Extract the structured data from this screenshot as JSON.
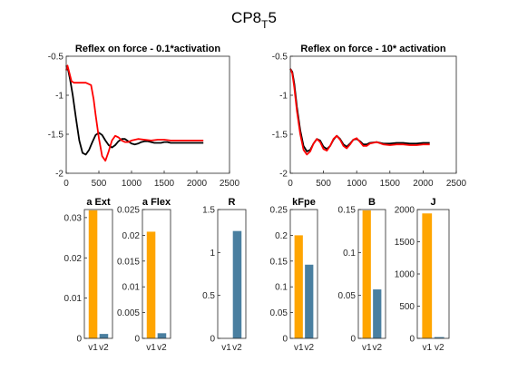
{
  "figure": {
    "title_main": "CP8",
    "title_sub": "T",
    "title_tail": "5"
  },
  "colors": {
    "black": "#000000",
    "red": "#ff0000",
    "orange": "#ffa500",
    "teal": "#4a7fa0",
    "axis": "#262626"
  },
  "chart_data": [
    {
      "type": "line",
      "title": "Reflex on force - 0.1*activation",
      "xlim": [
        0,
        2500
      ],
      "ylim": [
        -2,
        -0.5
      ],
      "xticks": [
        0,
        500,
        1000,
        1500,
        2000,
        2500
      ],
      "yticks": [
        -2,
        -1.5,
        -1,
        -0.5
      ],
      "ytick_labels": [
        "-2",
        "-1.5",
        "-1",
        "-0.5"
      ],
      "series": [
        {
          "color": "black",
          "x": [
            0,
            30,
            60,
            100,
            150,
            200,
            250,
            300,
            350,
            400,
            450,
            500,
            550,
            600,
            650,
            700,
            750,
            800,
            850,
            900,
            950,
            1000,
            1050,
            1100,
            1150,
            1200,
            1250,
            1300,
            1350,
            1400,
            1450,
            1500,
            1550,
            1600,
            1700,
            1800,
            1900,
            2000,
            2100
          ],
          "y": [
            -0.62,
            -0.68,
            -0.8,
            -1.0,
            -1.3,
            -1.58,
            -1.74,
            -1.76,
            -1.7,
            -1.6,
            -1.51,
            -1.48,
            -1.51,
            -1.58,
            -1.64,
            -1.67,
            -1.64,
            -1.59,
            -1.56,
            -1.56,
            -1.59,
            -1.62,
            -1.63,
            -1.62,
            -1.6,
            -1.59,
            -1.59,
            -1.6,
            -1.61,
            -1.61,
            -1.61,
            -1.6,
            -1.6,
            -1.61,
            -1.61,
            -1.61,
            -1.61,
            -1.61,
            -1.61
          ]
        },
        {
          "color": "red",
          "x": [
            0,
            20,
            50,
            80,
            120,
            200,
            300,
            380,
            420,
            450,
            500,
            550,
            600,
            650,
            700,
            750,
            800,
            850,
            900,
            950,
            1000,
            1100,
            1200,
            1300,
            1400,
            1500,
            1600,
            1800,
            2000,
            2100
          ],
          "y": [
            -0.68,
            -0.62,
            -0.72,
            -0.82,
            -0.84,
            -0.84,
            -0.84,
            -0.87,
            -1.05,
            -1.25,
            -1.55,
            -1.78,
            -1.84,
            -1.72,
            -1.58,
            -1.52,
            -1.54,
            -1.58,
            -1.6,
            -1.6,
            -1.58,
            -1.56,
            -1.57,
            -1.58,
            -1.57,
            -1.57,
            -1.58,
            -1.58,
            -1.58,
            -1.58
          ]
        }
      ]
    },
    {
      "type": "line",
      "title": "Reflex on force - 10* activation",
      "xlim": [
        0,
        2500
      ],
      "ylim": [
        -2,
        -0.5
      ],
      "xticks": [
        0,
        500,
        1000,
        1500,
        2000,
        2500
      ],
      "yticks": [
        -2,
        -1.5,
        -1,
        -0.5
      ],
      "ytick_labels": [
        "-2",
        "-1.5",
        "-1",
        "-0.5"
      ],
      "series": [
        {
          "color": "black",
          "x": [
            0,
            30,
            60,
            100,
            150,
            200,
            250,
            300,
            350,
            400,
            450,
            500,
            550,
            600,
            650,
            700,
            750,
            800,
            850,
            900,
            950,
            1000,
            1050,
            1100,
            1150,
            1200,
            1300,
            1400,
            1500,
            1600,
            1700,
            1800,
            1900,
            2000,
            2100
          ],
          "y": [
            -0.66,
            -0.7,
            -0.85,
            -1.15,
            -1.45,
            -1.65,
            -1.72,
            -1.7,
            -1.62,
            -1.56,
            -1.58,
            -1.66,
            -1.69,
            -1.65,
            -1.57,
            -1.52,
            -1.56,
            -1.63,
            -1.66,
            -1.62,
            -1.57,
            -1.56,
            -1.59,
            -1.63,
            -1.63,
            -1.61,
            -1.6,
            -1.62,
            -1.62,
            -1.61,
            -1.61,
            -1.62,
            -1.62,
            -1.61,
            -1.61
          ]
        },
        {
          "color": "red",
          "x": [
            0,
            30,
            60,
            100,
            150,
            200,
            250,
            300,
            350,
            400,
            450,
            500,
            550,
            600,
            650,
            700,
            750,
            800,
            850,
            900,
            950,
            1000,
            1050,
            1100,
            1150,
            1200,
            1300,
            1400,
            1500,
            1600,
            1700,
            1800,
            1900,
            2000,
            2100
          ],
          "y": [
            -0.66,
            -0.72,
            -0.9,
            -1.2,
            -1.5,
            -1.7,
            -1.76,
            -1.72,
            -1.62,
            -1.56,
            -1.6,
            -1.69,
            -1.71,
            -1.65,
            -1.56,
            -1.52,
            -1.57,
            -1.65,
            -1.68,
            -1.63,
            -1.57,
            -1.55,
            -1.6,
            -1.65,
            -1.65,
            -1.62,
            -1.6,
            -1.63,
            -1.64,
            -1.63,
            -1.63,
            -1.64,
            -1.64,
            -1.63,
            -1.63
          ]
        }
      ]
    },
    {
      "type": "bar",
      "title": "a Ext",
      "categories": [
        "v1",
        "v2"
      ],
      "values": [
        0.0318,
        0.0011
      ],
      "ylim": [
        0,
        0.032
      ],
      "yticks": [
        0,
        0.01,
        0.02,
        0.03
      ],
      "ytick_labels": [
        "0",
        "0.01",
        "0.02",
        "0.03"
      ],
      "bar_colors": [
        "orange",
        "teal"
      ]
    },
    {
      "type": "bar",
      "title": "a Flex",
      "categories": [
        "v1",
        "v2"
      ],
      "values": [
        0.0207,
        0.001
      ],
      "ylim": [
        0,
        0.025
      ],
      "yticks": [
        0,
        0.005,
        0.01,
        0.015,
        0.02,
        0.025
      ],
      "ytick_labels": [
        "0",
        "0.005",
        "0.01",
        "0.015",
        "0.02",
        "0.025"
      ],
      "bar_colors": [
        "orange",
        "teal"
      ]
    },
    {
      "type": "bar",
      "title": "R",
      "categories": [
        "v1",
        "v2"
      ],
      "values": [
        0,
        1.25
      ],
      "ylim": [
        0,
        1.5
      ],
      "yticks": [
        0,
        0.5,
        1,
        1.5
      ],
      "ytick_labels": [
        "0",
        "0.5",
        "1",
        "1.5"
      ],
      "bar_colors": [
        "orange",
        "teal"
      ]
    },
    {
      "type": "bar",
      "title": "kFpe",
      "categories": [
        "v1",
        "v2"
      ],
      "values": [
        0.2,
        0.143
      ],
      "ylim": [
        0,
        0.25
      ],
      "yticks": [
        0,
        0.05,
        0.1,
        0.15,
        0.2,
        0.25
      ],
      "ytick_labels": [
        "0",
        "0.05",
        "0.1",
        "0.15",
        "0.2",
        "0.25"
      ],
      "bar_colors": [
        "orange",
        "teal"
      ]
    },
    {
      "type": "bar",
      "title": "B",
      "categories": [
        "v1",
        "v2"
      ],
      "values": [
        0.149,
        0.057
      ],
      "ylim": [
        0,
        0.15
      ],
      "yticks": [
        0,
        0.05,
        0.1,
        0.15
      ],
      "ytick_labels": [
        "0",
        "0.05",
        "0.1",
        "0.15"
      ],
      "bar_colors": [
        "orange",
        "teal"
      ]
    },
    {
      "type": "bar",
      "title": "J",
      "categories": [
        "v1",
        "v2"
      ],
      "values": [
        1940,
        20
      ],
      "ylim": [
        0,
        2000
      ],
      "yticks": [
        0,
        500,
        1000,
        1500,
        2000
      ],
      "ytick_labels": [
        "0",
        "500",
        "1000",
        "1500",
        "2000"
      ],
      "bar_colors": [
        "orange",
        "teal"
      ]
    }
  ]
}
